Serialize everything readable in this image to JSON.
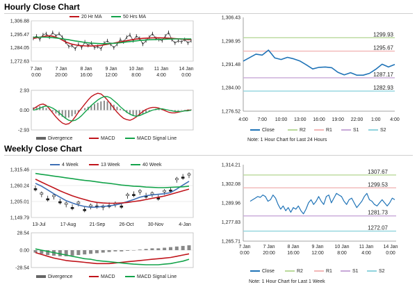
{
  "sections": {
    "hourly_title": "Hourly Close Chart",
    "weekly_title": "Weekly Close Chart"
  },
  "colors": {
    "price": "#1a1a1a",
    "ma_red": "#c0141b",
    "ma_green": "#13a34a",
    "ma_blue": "#3d6fb5",
    "close_line": "#1f73b7",
    "r2": "#b9d99a",
    "r1": "#f2b6b6",
    "s1": "#c8a8d8",
    "s2": "#8fd3dd",
    "divergence": "#888888",
    "grid": "#dddddd"
  },
  "chart_data": [
    {
      "id": "hourly_price",
      "type": "line",
      "title": "Hourly price with moving averages",
      "legend": [
        "20 Hr MA",
        "50 Hrs MA"
      ],
      "yticks": [
        "1,306.88",
        "1,295.47",
        "1,284.05",
        "1,272.63"
      ],
      "ylim": [
        1272.63,
        1306.88
      ],
      "xticks": [
        "7 Jan\n0:00",
        "7 Jan\n20:00",
        "8 Jan\n16:00",
        "9 Jan\n12:00",
        "10 Jan\n8:00",
        "11 Jan\n4:00",
        "14 Jan\n0:00"
      ],
      "series": [
        {
          "name": "Price",
          "values": [
            1292,
            1294,
            1291,
            1295,
            1296,
            1293,
            1297,
            1294,
            1296,
            1293,
            1289,
            1285,
            1286,
            1283,
            1287,
            1284,
            1289,
            1286,
            1288,
            1284,
            1285,
            1283,
            1288,
            1290,
            1287,
            1284,
            1287,
            1291,
            1289,
            1293,
            1295,
            1290,
            1294,
            1292,
            1287,
            1290,
            1293,
            1296,
            1292,
            1291,
            1290,
            1294,
            1297,
            1291,
            1288,
            1290,
            1289,
            1291,
            1288,
            1290
          ]
        },
        {
          "name": "20 Hr MA",
          "values": [
            1292,
            1292.5,
            1293,
            1293.5,
            1294,
            1294.2,
            1293.8,
            1293,
            1292,
            1290.5,
            1289,
            1288,
            1287,
            1286.5,
            1286,
            1285.8,
            1285.6,
            1285.5,
            1285.5,
            1285.6,
            1285.8,
            1286,
            1286.5,
            1287,
            1287.5,
            1288,
            1288.5,
            1289,
            1289.5,
            1290,
            1290.5,
            1291,
            1291.4,
            1291.7,
            1292,
            1292.2,
            1292.3,
            1292.4,
            1292.5,
            1292.5,
            1292.4,
            1292.3,
            1292.2,
            1292,
            1291.8,
            1291.6,
            1291.4,
            1291.2,
            1291,
            1291
          ]
        },
        {
          "name": "50 Hrs MA",
          "values": [
            1293,
            1293,
            1293,
            1293,
            1293,
            1292.8,
            1292.6,
            1292.3,
            1292,
            1291.6,
            1291.2,
            1290.8,
            1290.3,
            1289.8,
            1289.4,
            1289,
            1288.6,
            1288.3,
            1288,
            1287.8,
            1287.6,
            1287.5,
            1287.5,
            1287.5,
            1287.6,
            1287.8,
            1288,
            1288.3,
            1288.6,
            1289,
            1289.3,
            1289.6,
            1289.9,
            1290.2,
            1290.4,
            1290.6,
            1290.8,
            1290.9,
            1291,
            1291.1,
            1291.2,
            1291.3,
            1291.4,
            1291.4,
            1291.5,
            1291.5,
            1291.5,
            1291.5,
            1291.5,
            1291.5
          ]
        }
      ]
    },
    {
      "id": "hourly_macd",
      "type": "bar",
      "yticks": [
        "2.93",
        "0.00",
        "-2.93"
      ],
      "ylim": [
        -2.93,
        2.93
      ],
      "legend": [
        "Divergence",
        "MACD",
        "MACD Signal Line"
      ],
      "series": [
        {
          "name": "Divergence",
          "values": [
            0.4,
            0.5,
            0.6,
            0.5,
            0.3,
            0.1,
            -0.2,
            -0.5,
            -0.8,
            -1.0,
            -1.2,
            -1.1,
            -0.9,
            -0.6,
            -0.3,
            0,
            0.3,
            0.5,
            0.7,
            0.9,
            1.1,
            1.3,
            1.4,
            1.3,
            1.1,
            0.8,
            0.5,
            0.2,
            -0.1,
            -0.4,
            -0.6,
            -0.8,
            -0.9,
            -0.8,
            -0.6,
            -0.4,
            -0.2,
            0,
            0.2,
            0.3,
            0.2,
            0.1,
            0,
            -0.1,
            -0.15,
            -0.1,
            0,
            0.05,
            0.1,
            0.1
          ]
        },
        {
          "name": "MACD",
          "values": [
            0.2,
            0.5,
            0.8,
            0.9,
            0.7,
            0.2,
            -0.4,
            -1.0,
            -1.5,
            -1.9,
            -2.1,
            -2.0,
            -1.6,
            -1.0,
            -0.3,
            0.3,
            0.9,
            1.5,
            2.0,
            2.3,
            2.5,
            2.4,
            2.0,
            1.5,
            0.9,
            0.3,
            -0.3,
            -0.8,
            -1.2,
            -1.4,
            -1.5,
            -1.3,
            -1.0,
            -0.6,
            -0.2,
            0.1,
            0.3,
            0.4,
            0.4,
            0.3,
            0.1,
            -0.1,
            -0.3,
            -0.4,
            -0.4,
            -0.3,
            -0.2,
            -0.1,
            0,
            0
          ]
        },
        {
          "name": "MACD Signal Line",
          "values": [
            0,
            0.1,
            0.3,
            0.5,
            0.6,
            0.5,
            0.3,
            0,
            -0.4,
            -0.8,
            -1.2,
            -1.5,
            -1.6,
            -1.5,
            -1.2,
            -0.8,
            -0.3,
            0.2,
            0.7,
            1.1,
            1.5,
            1.8,
            2.0,
            2.0,
            1.8,
            1.4,
            1.0,
            0.5,
            0.1,
            -0.3,
            -0.6,
            -0.8,
            -0.9,
            -0.8,
            -0.6,
            -0.4,
            -0.2,
            0,
            0.1,
            0.2,
            0.2,
            0.1,
            0,
            -0.1,
            -0.2,
            -0.2,
            -0.2,
            -0.1,
            -0.1,
            0
          ]
        }
      ]
    },
    {
      "id": "hourly_close",
      "type": "line",
      "note": "Note: 1 Hour Chart for Last 24 Hours",
      "yticks": [
        "1,306.43",
        "1,298.95",
        "1,291.48",
        "1,284.00",
        "1,276.52"
      ],
      "ylim": [
        1276.52,
        1306.43
      ],
      "xticks": [
        "4:00",
        "7:00",
        "10:00",
        "13:00",
        "16:00",
        "19:00",
        "22:00",
        "1:00",
        "4:00"
      ],
      "levels": [
        {
          "name": "R2",
          "value": 1299.93,
          "label": "1299.93"
        },
        {
          "name": "R1",
          "value": 1295.67,
          "label": "1295.67"
        },
        {
          "name": "S1",
          "value": 1287.17,
          "label": "1287.17"
        },
        {
          "name": "S2",
          "value": 1282.93,
          "label": "1282.93"
        }
      ],
      "legend": [
        "Close",
        "R2",
        "R1",
        "S1",
        "S2"
      ],
      "x": [
        0,
        1,
        2,
        3,
        4,
        5,
        6,
        7,
        8,
        9,
        10,
        11,
        12,
        13,
        14,
        15,
        16,
        17,
        18,
        19,
        20,
        21,
        22,
        23,
        24
      ],
      "values": [
        1292.5,
        1293.6,
        1294.7,
        1294.4,
        1296.0,
        1293.5,
        1293.0,
        1293.7,
        1293.2,
        1292.5,
        1291.3,
        1290.0,
        1290.5,
        1290.6,
        1290.4,
        1288.9,
        1288.1,
        1288.8,
        1288.0,
        1288.0,
        1288.6,
        1289.9,
        1291.5,
        1290.6,
        1291.4
      ]
    },
    {
      "id": "weekly_price",
      "type": "line",
      "legend": [
        "4 Week",
        "13 Week",
        "40 Week"
      ],
      "yticks": [
        "1,315.46",
        "1,260.24",
        "1,205.01",
        "1,149.79"
      ],
      "ylim": [
        1149.79,
        1315.46
      ],
      "xticks": [
        "13-Jul",
        "17-Aug",
        "21-Sep",
        "26-Oct",
        "30-Nov",
        "4-Jan"
      ],
      "series": [
        {
          "name": "Price",
          "values": [
            1250,
            1230,
            1215,
            1222,
            1205,
            1195,
            1185,
            1198,
            1178,
            1188,
            1190,
            1185,
            1192,
            1195,
            1190,
            1225,
            1230,
            1238,
            1225,
            1230,
            1218,
            1238,
            1245,
            1280,
            1290,
            1296
          ]
        },
        {
          "name": "4 Week",
          "values": [
            1268,
            1258,
            1245,
            1232,
            1220,
            1208,
            1200,
            1193,
            1188,
            1185,
            1186,
            1188,
            1190,
            1193,
            1198,
            1205,
            1212,
            1220,
            1225,
            1228,
            1230,
            1232,
            1236,
            1248,
            1262,
            1275
          ]
        },
        {
          "name": "13 Week",
          "values": [
            1282,
            1272,
            1262,
            1252,
            1242,
            1233,
            1225,
            1218,
            1212,
            1206,
            1202,
            1200,
            1199,
            1199,
            1200,
            1202,
            1205,
            1208,
            1212,
            1216,
            1220,
            1224,
            1230,
            1236,
            1242,
            1248
          ]
        },
        {
          "name": "40 Week",
          "values": [
            1302,
            1299,
            1296,
            1293,
            1290,
            1287,
            1284,
            1281,
            1278,
            1276,
            1273,
            1270,
            1268,
            1265,
            1262,
            1260,
            1258,
            1257,
            1255,
            1254,
            1253,
            1253,
            1254,
            1255,
            1256,
            1258
          ]
        }
      ]
    },
    {
      "id": "weekly_macd",
      "type": "bar",
      "yticks": [
        "28.54",
        "0.00",
        "-28.54"
      ],
      "ylim": [
        -28.54,
        28.54
      ],
      "legend": [
        "Divergence",
        "MACD",
        "MACD Signal Line"
      ],
      "series": [
        {
          "name": "Divergence",
          "values": [
            -4,
            -6,
            -8,
            -9,
            -10,
            -10,
            -9,
            -8,
            -7,
            -6,
            -5,
            -4,
            -3,
            -2,
            -2,
            -1,
            0,
            1,
            2,
            3,
            3,
            4,
            5,
            6,
            7,
            8
          ]
        },
        {
          "name": "MACD",
          "values": [
            -4,
            -7,
            -10,
            -13,
            -15,
            -17,
            -18,
            -19,
            -20,
            -21,
            -22,
            -22,
            -22,
            -21,
            -20,
            -19,
            -18,
            -17,
            -16,
            -15,
            -14,
            -13,
            -12,
            -10,
            -8,
            -6
          ]
        },
        {
          "name": "MACD Signal Line",
          "values": [
            2,
            0,
            -2,
            -4,
            -6,
            -8,
            -10,
            -12,
            -14,
            -15,
            -17,
            -18,
            -19,
            -20,
            -21,
            -22,
            -23,
            -23.5,
            -24,
            -24,
            -24,
            -23,
            -22,
            -20,
            -18,
            -15
          ]
        }
      ]
    },
    {
      "id": "weekly_close",
      "type": "line",
      "note": "Note: 1 Hour Chart for Last 1 Week",
      "yticks": [
        "1,314.21",
        "1,302.08",
        "1,289.96",
        "1,277.83",
        "1,265.71"
      ],
      "ylim": [
        1265.71,
        1314.21
      ],
      "xticks": [
        "7 Jan\n0:00",
        "7 Jan\n20:00",
        "8 Jan\n16:00",
        "9 Jan\n12:00",
        "10 Jan\n8:00",
        "11 Jan\n4:00",
        "14 Jan\n0:00"
      ],
      "levels": [
        {
          "name": "R2",
          "value": 1307.67,
          "label": "1307.67"
        },
        {
          "name": "R1",
          "value": 1299.53,
          "label": "1299.53"
        },
        {
          "name": "S1",
          "value": 1281.73,
          "label": "1281.73"
        },
        {
          "name": "S2",
          "value": 1272.07,
          "label": "1272.07"
        }
      ],
      "legend": [
        "Close",
        "R2",
        "R1",
        "S1",
        "S2"
      ],
      "values": [
        1291,
        1292,
        1293,
        1294,
        1293.5,
        1295,
        1294,
        1291,
        1292,
        1295,
        1293,
        1289,
        1286,
        1288,
        1285,
        1287,
        1284,
        1287,
        1286,
        1288,
        1285,
        1283,
        1286,
        1290,
        1292,
        1289,
        1291,
        1294,
        1291,
        1289,
        1294,
        1295,
        1290,
        1293,
        1296,
        1295,
        1294,
        1291,
        1289,
        1292,
        1293,
        1290,
        1287,
        1289,
        1291,
        1294,
        1296,
        1292,
        1291,
        1289,
        1288,
        1290,
        1292,
        1290,
        1288,
        1290,
        1293,
        1292
      ]
    }
  ]
}
